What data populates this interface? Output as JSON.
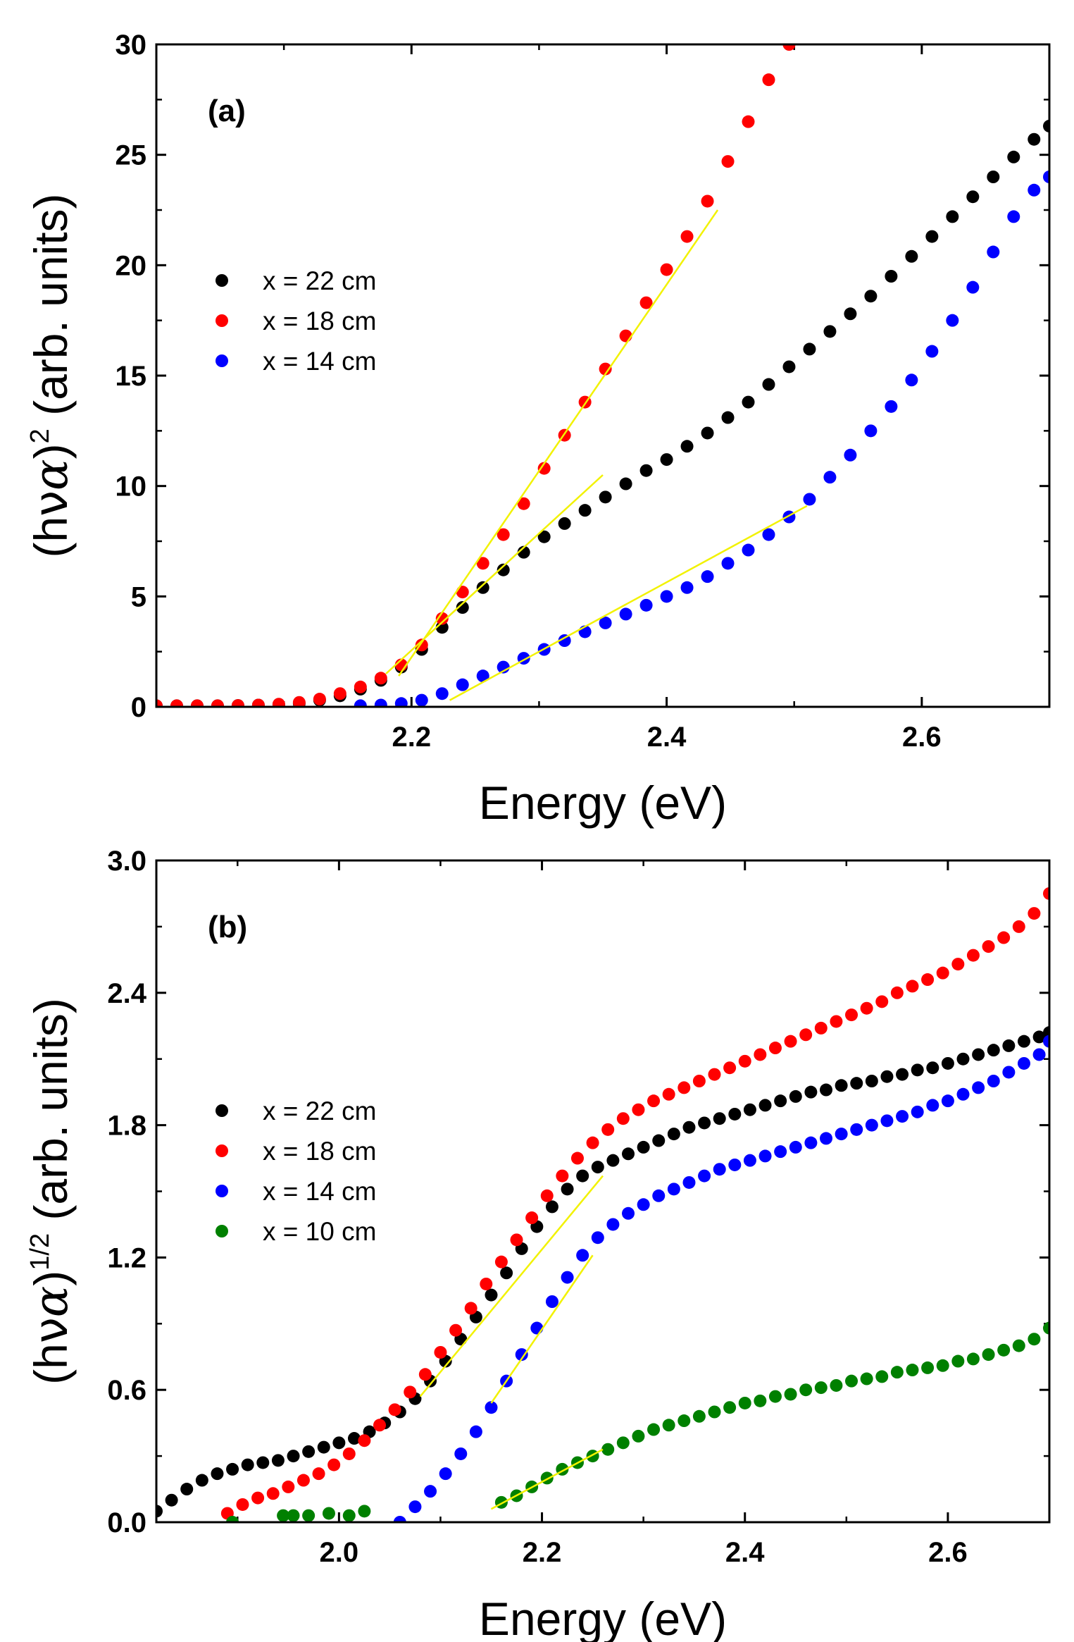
{
  "chart_data": [
    {
      "type": "scatter",
      "panel_label": "(a)",
      "xlabel": "Energy (eV)",
      "ylabel": {
        "prefix": "(h",
        "nu": "ν",
        "alpha": "α",
        "suffix": ")",
        "sup": "2",
        "units": "(arb. units)"
      },
      "xlim": [
        2.0,
        2.7
      ],
      "ylim": [
        0,
        30
      ],
      "xticks": [
        2.2,
        2.4,
        2.6
      ],
      "xtick_labels": [
        "2.2",
        "2.4",
        "2.6"
      ],
      "yticks": [
        0,
        5,
        10,
        15,
        20,
        25,
        30
      ],
      "ytick_labels": [
        "0",
        "5",
        "10",
        "15",
        "20",
        "25",
        "30"
      ],
      "legend": {
        "position": "middle-left"
      },
      "series": [
        {
          "name": "x = 22 cm",
          "color": "#000000",
          "x": [
            2.0,
            2.016,
            2.032,
            2.048,
            2.064,
            2.08,
            2.096,
            2.112,
            2.128,
            2.144,
            2.16,
            2.176,
            2.192,
            2.208,
            2.224,
            2.24,
            2.256,
            2.272,
            2.288,
            2.304,
            2.32,
            2.336,
            2.352,
            2.368,
            2.384,
            2.4,
            2.416,
            2.432,
            2.448,
            2.464,
            2.48,
            2.496,
            2.512,
            2.528,
            2.544,
            2.56,
            2.576,
            2.592,
            2.608,
            2.624,
            2.64,
            2.656,
            2.672,
            2.688,
            2.7
          ],
          "y": [
            0.05,
            0.05,
            0.05,
            0.05,
            0.06,
            0.08,
            0.1,
            0.15,
            0.3,
            0.5,
            0.8,
            1.2,
            1.8,
            2.6,
            3.6,
            4.5,
            5.4,
            6.2,
            7.0,
            7.7,
            8.3,
            8.9,
            9.5,
            10.1,
            10.7,
            11.2,
            11.8,
            12.4,
            13.1,
            13.8,
            14.6,
            15.4,
            16.2,
            17.0,
            17.8,
            18.6,
            19.5,
            20.4,
            21.3,
            22.2,
            23.1,
            24.0,
            24.9,
            25.7,
            26.3
          ]
        },
        {
          "name": "x = 18 cm",
          "color": "#ff0000",
          "x": [
            2.0,
            2.016,
            2.032,
            2.048,
            2.064,
            2.08,
            2.096,
            2.112,
            2.128,
            2.144,
            2.16,
            2.176,
            2.192,
            2.208,
            2.224,
            2.24,
            2.256,
            2.272,
            2.288,
            2.304,
            2.32,
            2.336,
            2.352,
            2.368,
            2.384,
            2.4,
            2.416,
            2.432,
            2.448,
            2.464,
            2.48,
            2.496
          ],
          "y": [
            0.05,
            0.05,
            0.05,
            0.05,
            0.06,
            0.08,
            0.12,
            0.2,
            0.35,
            0.6,
            0.9,
            1.3,
            1.9,
            2.8,
            4.0,
            5.2,
            6.5,
            7.8,
            9.2,
            10.8,
            12.3,
            13.8,
            15.3,
            16.8,
            18.3,
            19.8,
            21.3,
            22.9,
            24.7,
            26.5,
            28.4,
            30.0
          ]
        },
        {
          "name": "x = 14 cm",
          "color": "#0000ff",
          "x": [
            2.16,
            2.176,
            2.192,
            2.208,
            2.224,
            2.24,
            2.256,
            2.272,
            2.288,
            2.304,
            2.32,
            2.336,
            2.352,
            2.368,
            2.384,
            2.4,
            2.416,
            2.432,
            2.448,
            2.464,
            2.48,
            2.496,
            2.512,
            2.528,
            2.544,
            2.56,
            2.576,
            2.592,
            2.608,
            2.624,
            2.64,
            2.656,
            2.672,
            2.688,
            2.7
          ],
          "y": [
            0.05,
            0.08,
            0.15,
            0.3,
            0.6,
            1.0,
            1.4,
            1.8,
            2.2,
            2.6,
            3.0,
            3.4,
            3.8,
            4.2,
            4.6,
            5.0,
            5.4,
            5.9,
            6.5,
            7.1,
            7.8,
            8.6,
            9.4,
            10.4,
            11.4,
            12.5,
            13.6,
            14.8,
            16.1,
            17.5,
            19.0,
            20.6,
            22.2,
            23.4,
            24.0
          ]
        }
      ],
      "fit_lines": [
        {
          "x": [
            2.18,
            2.35
          ],
          "y": [
            1.5,
            10.5
          ]
        },
        {
          "x": [
            2.19,
            2.44
          ],
          "y": [
            1.4,
            22.5
          ]
        },
        {
          "x": [
            2.23,
            2.51
          ],
          "y": [
            0.3,
            9.1
          ]
        }
      ]
    },
    {
      "type": "scatter",
      "panel_label": "(b)",
      "xlabel": "Energy (eV)",
      "ylabel": {
        "prefix": "(h",
        "nu": "ν",
        "alpha": "α",
        "suffix": ")",
        "sup": "1/2",
        "units": "(arb. units)"
      },
      "xlim": [
        1.82,
        2.7
      ],
      "ylim": [
        0,
        3.0
      ],
      "xticks": [
        2.0,
        2.2,
        2.4,
        2.6
      ],
      "xtick_labels": [
        "2.0",
        "2.2",
        "2.4",
        "2.6"
      ],
      "yticks": [
        0,
        0.6,
        1.2,
        1.8,
        2.4,
        3.0
      ],
      "ytick_labels": [
        "0.0",
        "0.6",
        "1.2",
        "1.8",
        "2.4",
        "3.0"
      ],
      "legend": {
        "position": "middle-left"
      },
      "series": [
        {
          "name": "x = 22 cm",
          "color": "#000000",
          "x": [
            1.82,
            1.835,
            1.85,
            1.865,
            1.88,
            1.895,
            1.91,
            1.925,
            1.94,
            1.955,
            1.97,
            1.985,
            2.0,
            2.015,
            2.03,
            2.045,
            2.06,
            2.075,
            2.09,
            2.105,
            2.12,
            2.135,
            2.15,
            2.165,
            2.18,
            2.195,
            2.21,
            2.225,
            2.24,
            2.255,
            2.27,
            2.285,
            2.3,
            2.315,
            2.33,
            2.345,
            2.36,
            2.375,
            2.39,
            2.405,
            2.42,
            2.435,
            2.45,
            2.465,
            2.48,
            2.495,
            2.51,
            2.525,
            2.54,
            2.555,
            2.57,
            2.585,
            2.6,
            2.615,
            2.63,
            2.645,
            2.66,
            2.675,
            2.69,
            2.7
          ],
          "y": [
            0.05,
            0.1,
            0.15,
            0.19,
            0.22,
            0.24,
            0.26,
            0.27,
            0.28,
            0.3,
            0.32,
            0.34,
            0.36,
            0.38,
            0.41,
            0.45,
            0.5,
            0.56,
            0.64,
            0.73,
            0.83,
            0.93,
            1.03,
            1.13,
            1.24,
            1.34,
            1.43,
            1.51,
            1.57,
            1.61,
            1.64,
            1.67,
            1.7,
            1.73,
            1.76,
            1.79,
            1.81,
            1.83,
            1.85,
            1.87,
            1.89,
            1.91,
            1.93,
            1.95,
            1.96,
            1.98,
            1.99,
            2.0,
            2.02,
            2.03,
            2.05,
            2.06,
            2.08,
            2.1,
            2.12,
            2.14,
            2.16,
            2.18,
            2.2,
            2.22
          ]
        },
        {
          "name": "x = 18 cm",
          "color": "#ff0000",
          "x": [
            1.89,
            1.905,
            1.92,
            1.935,
            1.95,
            1.965,
            1.98,
            1.995,
            2.01,
            2.025,
            2.04,
            2.055,
            2.07,
            2.085,
            2.1,
            2.115,
            2.13,
            2.145,
            2.16,
            2.175,
            2.19,
            2.205,
            2.22,
            2.235,
            2.25,
            2.265,
            2.28,
            2.295,
            2.31,
            2.325,
            2.34,
            2.355,
            2.37,
            2.385,
            2.4,
            2.415,
            2.43,
            2.445,
            2.46,
            2.475,
            2.49,
            2.505,
            2.52,
            2.535,
            2.55,
            2.565,
            2.58,
            2.595,
            2.61,
            2.625,
            2.64,
            2.655,
            2.67,
            2.685,
            2.7
          ],
          "y": [
            0.04,
            0.08,
            0.11,
            0.13,
            0.16,
            0.19,
            0.22,
            0.26,
            0.31,
            0.37,
            0.44,
            0.51,
            0.59,
            0.67,
            0.77,
            0.87,
            0.97,
            1.08,
            1.18,
            1.28,
            1.38,
            1.48,
            1.57,
            1.65,
            1.72,
            1.78,
            1.83,
            1.87,
            1.91,
            1.94,
            1.97,
            2.0,
            2.03,
            2.06,
            2.09,
            2.12,
            2.15,
            2.18,
            2.21,
            2.24,
            2.27,
            2.3,
            2.33,
            2.36,
            2.4,
            2.43,
            2.46,
            2.49,
            2.53,
            2.57,
            2.61,
            2.65,
            2.7,
            2.76,
            2.85
          ]
        },
        {
          "name": "x = 14 cm",
          "color": "#0000ff",
          "x": [
            2.06,
            2.075,
            2.09,
            2.105,
            2.12,
            2.135,
            2.15,
            2.165,
            2.18,
            2.195,
            2.21,
            2.225,
            2.24,
            2.255,
            2.27,
            2.285,
            2.3,
            2.315,
            2.33,
            2.345,
            2.36,
            2.375,
            2.39,
            2.405,
            2.42,
            2.435,
            2.45,
            2.465,
            2.48,
            2.495,
            2.51,
            2.525,
            2.54,
            2.555,
            2.57,
            2.585,
            2.6,
            2.615,
            2.63,
            2.645,
            2.66,
            2.675,
            2.69,
            2.7
          ],
          "y": [
            0.0,
            0.07,
            0.14,
            0.22,
            0.31,
            0.41,
            0.52,
            0.64,
            0.76,
            0.88,
            1.0,
            1.11,
            1.21,
            1.29,
            1.35,
            1.4,
            1.44,
            1.48,
            1.51,
            1.54,
            1.57,
            1.6,
            1.62,
            1.64,
            1.66,
            1.68,
            1.7,
            1.72,
            1.74,
            1.76,
            1.78,
            1.8,
            1.82,
            1.84,
            1.86,
            1.89,
            1.91,
            1.94,
            1.97,
            2.0,
            2.04,
            2.08,
            2.12,
            2.18
          ]
        },
        {
          "name": "x = 10 cm",
          "color": "#008000",
          "x": [
            1.895,
            1.945,
            1.955,
            1.97,
            1.99,
            2.01,
            2.025,
            2.16,
            2.175,
            2.19,
            2.205,
            2.22,
            2.235,
            2.25,
            2.265,
            2.28,
            2.295,
            2.31,
            2.325,
            2.34,
            2.355,
            2.37,
            2.385,
            2.4,
            2.415,
            2.43,
            2.445,
            2.46,
            2.475,
            2.49,
            2.505,
            2.52,
            2.535,
            2.55,
            2.565,
            2.58,
            2.595,
            2.61,
            2.625,
            2.64,
            2.655,
            2.67,
            2.685,
            2.7
          ],
          "y": [
            0.0,
            0.03,
            0.03,
            0.03,
            0.04,
            0.03,
            0.05,
            0.09,
            0.12,
            0.16,
            0.2,
            0.24,
            0.27,
            0.3,
            0.33,
            0.36,
            0.39,
            0.42,
            0.44,
            0.46,
            0.48,
            0.5,
            0.52,
            0.54,
            0.55,
            0.57,
            0.58,
            0.6,
            0.61,
            0.62,
            0.64,
            0.65,
            0.66,
            0.68,
            0.69,
            0.7,
            0.71,
            0.73,
            0.74,
            0.76,
            0.78,
            0.8,
            0.83,
            0.88
          ]
        }
      ],
      "fit_lines": [
        {
          "x": [
            2.08,
            2.26
          ],
          "y": [
            0.57,
            1.57
          ]
        },
        {
          "x": [
            2.15,
            2.25
          ],
          "y": [
            0.54,
            1.21
          ]
        },
        {
          "x": [
            2.15,
            2.26
          ],
          "y": [
            0.06,
            0.33
          ]
        }
      ]
    }
  ]
}
